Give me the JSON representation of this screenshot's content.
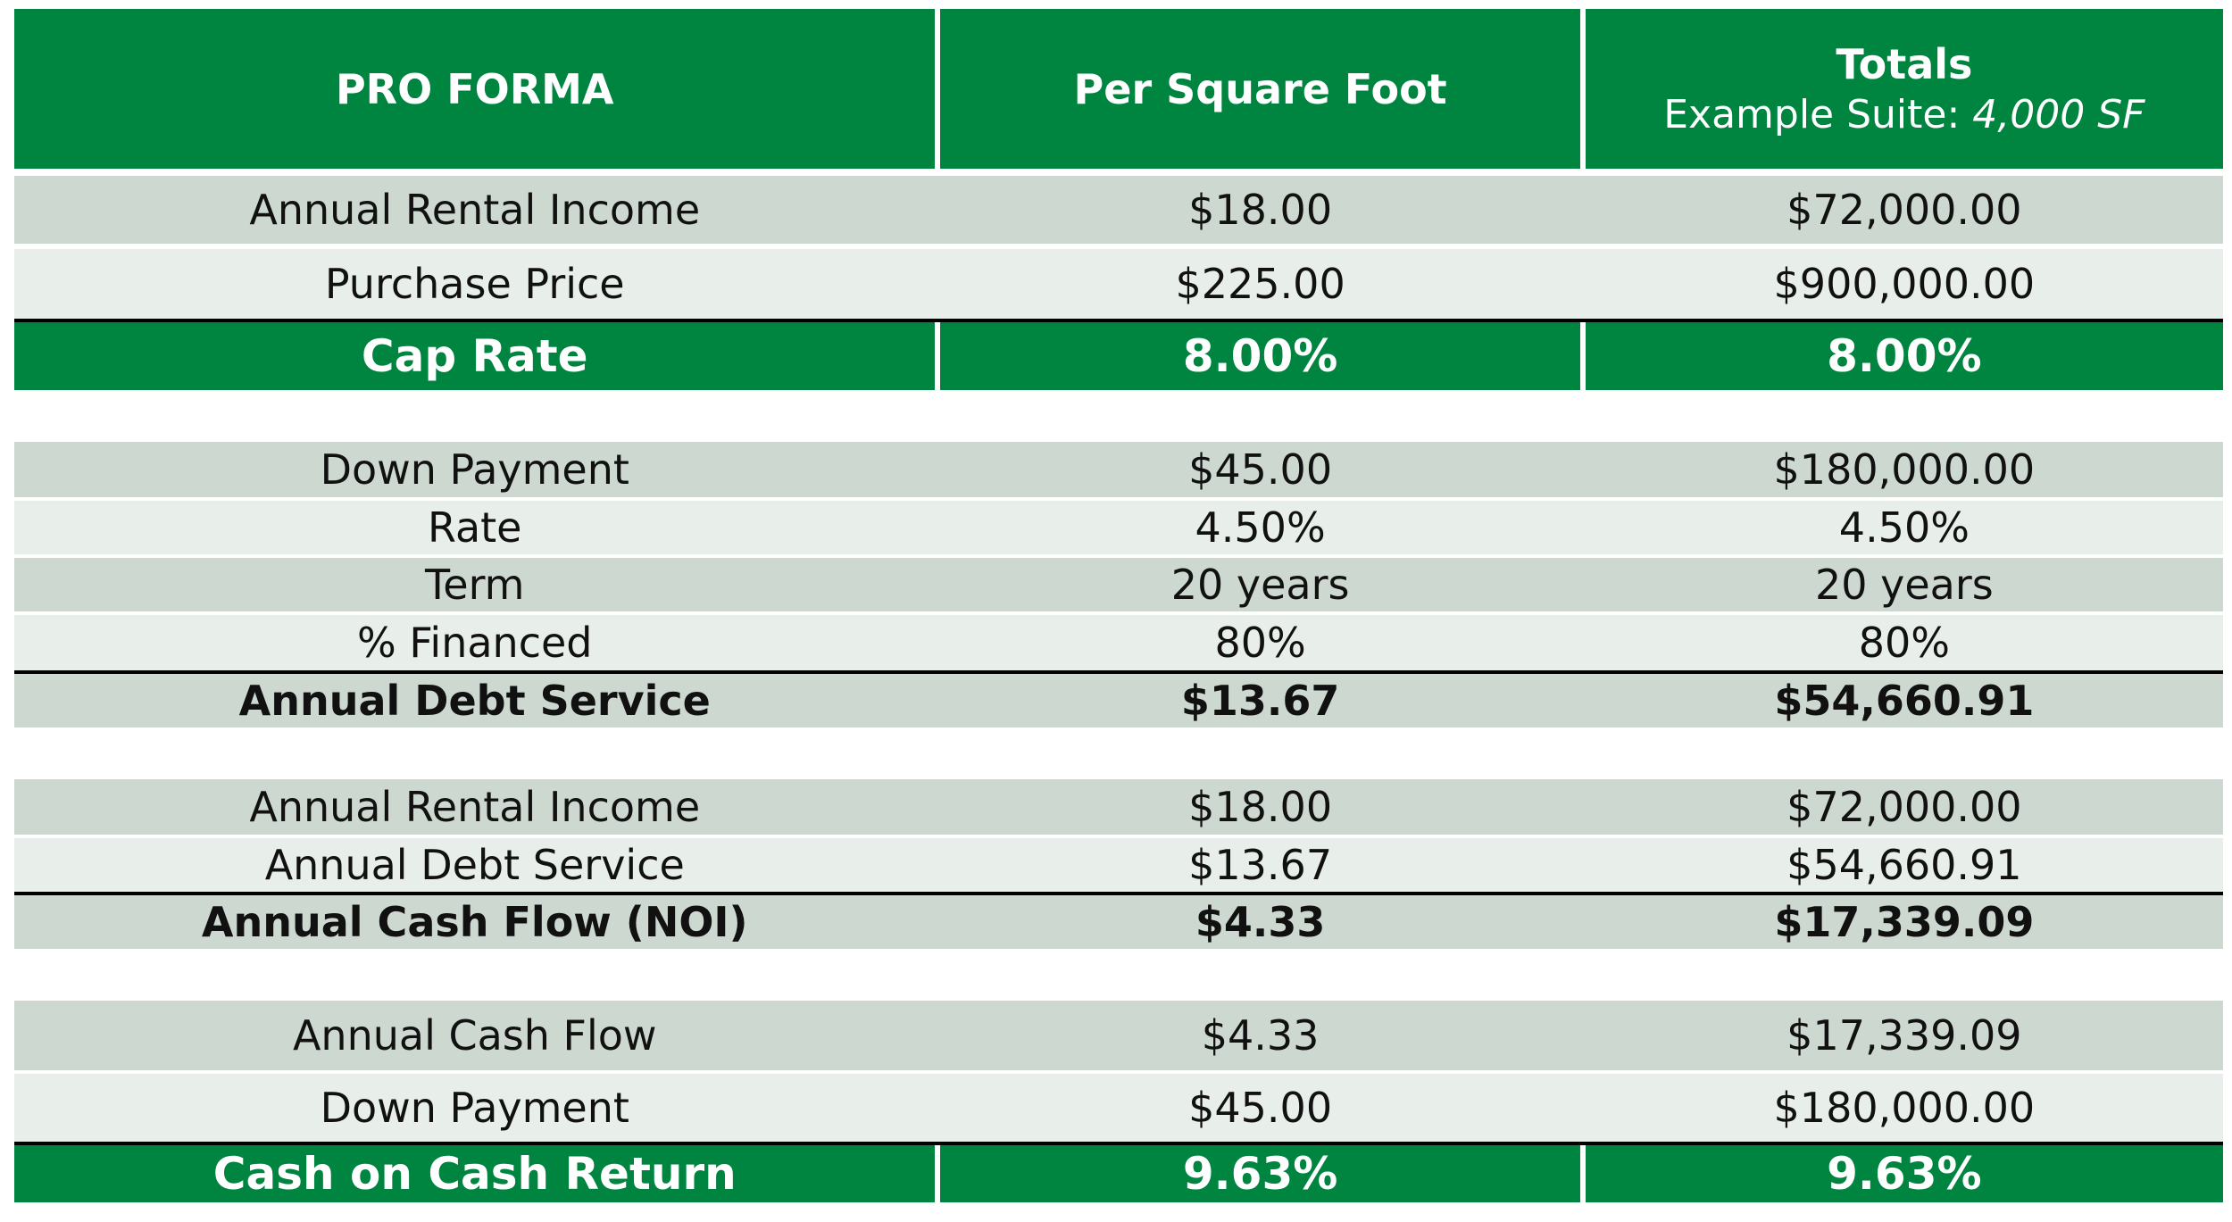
{
  "header": {
    "col1": "PRO FORMA",
    "col2": "Per Square Foot",
    "col3": "Totals",
    "col3_sub_prefix": "Example Suite: ",
    "col3_sub_value": "4,000 SF"
  },
  "sections": [
    {
      "rows": [
        {
          "label": "Annual Rental Income",
          "psf": "$18.00",
          "total": "$72,000.00"
        },
        {
          "label": "Purchase Price",
          "psf": "$225.00",
          "total": "$900,000.00"
        }
      ],
      "summary": {
        "label": "Cap Rate",
        "psf": "8.00%",
        "total": "8.00%"
      }
    },
    {
      "rows": [
        {
          "label": "Down Payment",
          "psf": "$45.00",
          "total": "$180,000.00"
        },
        {
          "label": "Rate",
          "psf": "4.50%",
          "total": "4.50%"
        },
        {
          "label": "Term",
          "psf": "20 years",
          "total": "20 years"
        },
        {
          "label": "% Financed",
          "psf": "80%",
          "total": "80%"
        }
      ],
      "summary": {
        "label": "Annual Debt Service",
        "psf": "$13.67",
        "total": "$54,660.91"
      }
    },
    {
      "rows": [
        {
          "label": "Annual Rental Income",
          "psf": "$18.00",
          "total": "$72,000.00"
        },
        {
          "label": "Annual Debt Service",
          "psf": "$13.67",
          "total": "$54,660.91"
        }
      ],
      "summary": {
        "label": "Annual Cash Flow (NOI)",
        "psf": "$4.33",
        "total": "$17,339.09"
      }
    },
    {
      "rows": [
        {
          "label": "Annual Cash Flow",
          "psf": "$4.33",
          "total": "$17,339.09"
        },
        {
          "label": "Down Payment",
          "psf": "$45.00",
          "total": "$180,000.00"
        }
      ],
      "summary": {
        "label": "Cash on Cash Return",
        "psf": "9.63%",
        "total": "9.63%"
      }
    }
  ],
  "colors": {
    "green": "#008540",
    "row_dark": "#cdd9d0",
    "row_light": "#e8eee9"
  }
}
